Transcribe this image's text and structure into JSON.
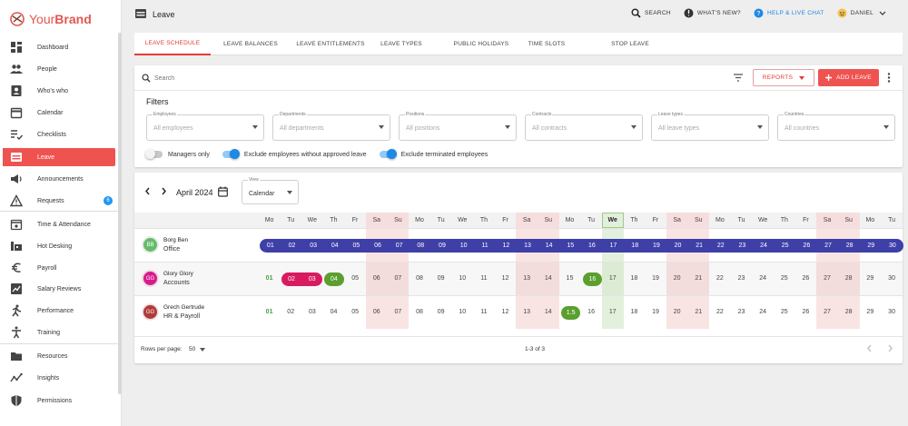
{
  "brand": {
    "name_prefix": "Your",
    "name_bold": "Brand"
  },
  "sidebar": {
    "items": [
      {
        "label": "Dashboard",
        "icon": "dashboard-icon"
      },
      {
        "label": "People",
        "icon": "people-icon"
      },
      {
        "label": "Who's who",
        "icon": "badge-icon"
      },
      {
        "label": "Calendar",
        "icon": "calendar-icon"
      },
      {
        "label": "Checklists",
        "icon": "checklist-icon"
      },
      {
        "label": "Leave",
        "icon": "leave-icon",
        "active": true
      },
      {
        "label": "Announcements",
        "icon": "announcement-icon"
      },
      {
        "label": "Requests",
        "icon": "warning-icon",
        "badge": "6"
      },
      {
        "label": "Time & Attendance",
        "icon": "time-icon"
      },
      {
        "label": "Hot Desking",
        "icon": "desk-icon"
      },
      {
        "label": "Payroll",
        "icon": "euro-icon"
      },
      {
        "label": "Salary Reviews",
        "icon": "salary-icon"
      },
      {
        "label": "Performance",
        "icon": "performance-icon"
      },
      {
        "label": "Training",
        "icon": "training-icon"
      },
      {
        "label": "Resources",
        "icon": "folder-icon"
      },
      {
        "label": "Insights",
        "icon": "insights-icon"
      },
      {
        "label": "Permissions",
        "icon": "shield-icon"
      }
    ]
  },
  "header": {
    "title": "Leave",
    "search": "SEARCH",
    "whats_new": "WHAT'S NEW?",
    "help": "HELP & LIVE CHAT",
    "user": "DANIEL"
  },
  "tabs": [
    "LEAVE SCHEDULE",
    "LEAVE BALANCES",
    "LEAVE ENTITLEMENTS",
    "LEAVE TYPES",
    "PUBLIC HOLIDAYS",
    "TIME SLOTS",
    "STOP LEAVE"
  ],
  "filters": {
    "search_placeholder": "Search",
    "reports": "REPORTS",
    "add_leave": "ADD LEAVE",
    "title": "Filters",
    "selects": [
      {
        "label": "Employees",
        "value": "All employees"
      },
      {
        "label": "Departments",
        "value": "All departments"
      },
      {
        "label": "Positions",
        "value": "All positions"
      },
      {
        "label": "Contracts",
        "value": "All contracts"
      },
      {
        "label": "Leave types",
        "value": "All leave types"
      },
      {
        "label": "Countries",
        "value": "All countries"
      }
    ],
    "toggles": [
      {
        "label": "Managers only",
        "on": false
      },
      {
        "label": "Exclude employees without approved leave",
        "on": true
      },
      {
        "label": "Exclude terminated employees",
        "on": true
      }
    ]
  },
  "calendar": {
    "month": "April 2024",
    "view_label": "View",
    "view_value": "Calendar",
    "weekdays": [
      "Mo",
      "Tu",
      "We",
      "Th",
      "Fr",
      "Sa",
      "Su",
      "Mo",
      "Tu",
      "We",
      "Th",
      "Fr",
      "Sa",
      "Su",
      "Mo",
      "Tu",
      "We",
      "Th",
      "Fr",
      "Sa",
      "Su",
      "Mo",
      "Tu",
      "We",
      "Th",
      "Fr",
      "Sa",
      "Su",
      "Mo",
      "Tu"
    ],
    "weekend_days": [
      6,
      7,
      13,
      14,
      20,
      21,
      27,
      28
    ],
    "today": 17,
    "employees": [
      {
        "name": "Borg Ben",
        "dept": "Office",
        "initials": "BB",
        "avatar_color": "#66bb6a",
        "leave": [
          {
            "from": 1,
            "to": 30,
            "color": "#3f3fa8"
          }
        ]
      },
      {
        "name": "Glory Glory",
        "dept": "Accounts",
        "initials": "GG",
        "avatar_color": "#d81b8c",
        "leave": [
          {
            "from": 2,
            "to": 3,
            "color": "#d81b60"
          },
          {
            "from": 4,
            "to": 4,
            "color": "#5b9f2f"
          },
          {
            "from": 16,
            "to": 16,
            "color": "#5b9f2f"
          }
        ]
      },
      {
        "name": "Grech Gertrude",
        "dept": "HR & Payroll",
        "initials": "GG",
        "avatar_color": "#b03a3a",
        "leave": [
          {
            "from": 15,
            "to": 15,
            "color": "#5b9f2f",
            "label": "1.5"
          }
        ]
      }
    ],
    "rows_per_page_label": "Rows per page:",
    "rows_per_page": "50",
    "page_info": "1-3 of 3"
  }
}
